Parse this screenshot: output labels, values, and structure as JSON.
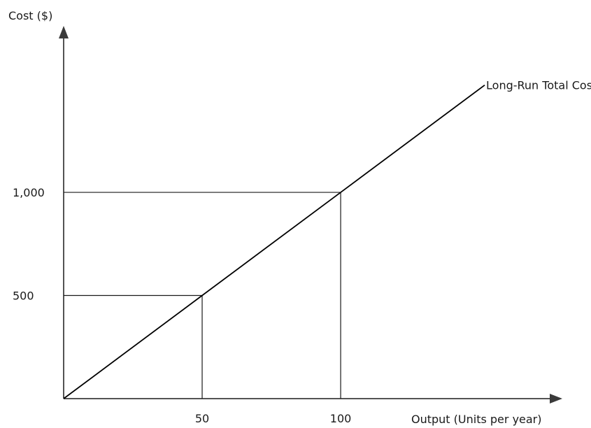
{
  "chart_data": {
    "type": "line",
    "xlabel": "Output (Units per year)",
    "ylabel": "Cost ($)",
    "xlim": [
      0,
      178
    ],
    "ylim": [
      0,
      1780
    ],
    "x_ticks": [
      {
        "value": 50,
        "label": "50"
      },
      {
        "value": 100,
        "label": "100"
      }
    ],
    "y_ticks": [
      {
        "value": 500,
        "label": "500"
      },
      {
        "value": 1000,
        "label": "1,000"
      }
    ],
    "series": [
      {
        "name": "Long-Run Total Cost",
        "x": [
          0,
          50,
          100,
          152
        ],
        "y": [
          0,
          500,
          1000,
          1520
        ]
      }
    ],
    "reference_points": [
      {
        "x": 50,
        "y": 500
      },
      {
        "x": 100,
        "y": 1000
      }
    ],
    "grid": false,
    "legend": "none",
    "colors": {
      "axis": "#1a1a1a",
      "line": "#000000",
      "arrow": "#3a3a3a"
    }
  }
}
